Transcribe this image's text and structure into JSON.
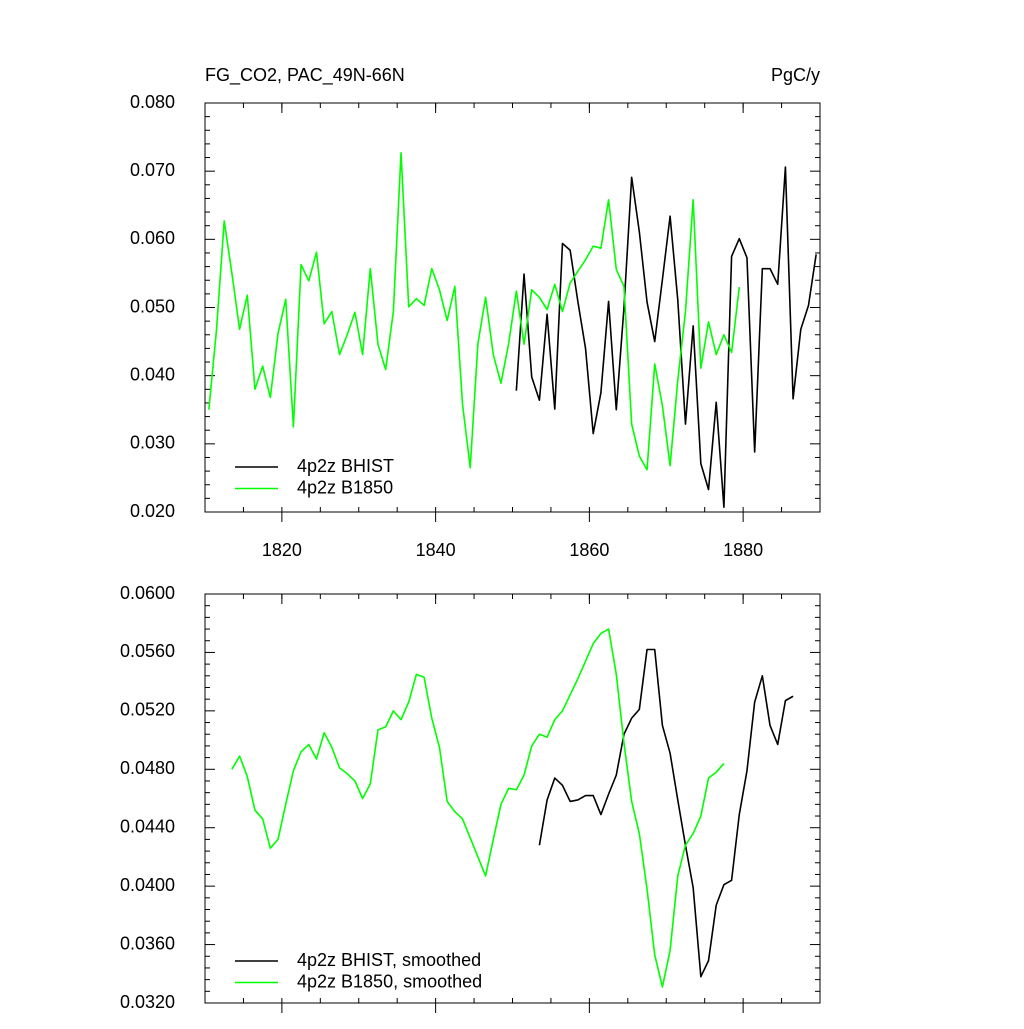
{
  "chart_data": [
    {
      "type": "line",
      "title": "FG_CO2, PAC_49N-66N",
      "units": "PgC/y",
      "xlim": [
        1810,
        1890
      ],
      "xticks": [
        1820,
        1840,
        1860,
        1880
      ],
      "ylim": [
        0.02,
        0.08
      ],
      "yticks": [
        {
          "value": 0.02,
          "label": "0.020"
        },
        {
          "value": 0.03,
          "label": "0.030"
        },
        {
          "value": 0.04,
          "label": "0.040"
        },
        {
          "value": 0.05,
          "label": "0.050"
        },
        {
          "value": 0.06,
          "label": "0.060"
        },
        {
          "value": 0.07,
          "label": "0.070"
        },
        {
          "value": 0.08,
          "label": "0.080"
        }
      ],
      "legend": "lower left",
      "series": [
        {
          "name": "4p2z BHIST",
          "color": "#000000",
          "x": [
            1850.5,
            1851.5,
            1852.5,
            1853.5,
            1854.5,
            1855.5,
            1856.5,
            1857.5,
            1858.5,
            1859.5,
            1860.5,
            1861.5,
            1862.5,
            1863.5,
            1864.5,
            1865.5,
            1866.5,
            1867.5,
            1868.5,
            1869.5,
            1870.5,
            1871.5,
            1872.5,
            1873.5,
            1874.5,
            1875.5,
            1876.5,
            1877.5,
            1878.5,
            1879.5,
            1880.5,
            1881.5,
            1882.5,
            1883.5,
            1884.5,
            1885.5,
            1886.5,
            1887.5,
            1888.5,
            1889.5
          ],
          "values": [
            0.0378,
            0.0549,
            0.0398,
            0.0364,
            0.049,
            0.0351,
            0.0594,
            0.0584,
            0.0509,
            0.044,
            0.0315,
            0.0375,
            0.0509,
            0.035,
            0.05,
            0.0691,
            0.0611,
            0.0508,
            0.045,
            0.0541,
            0.0634,
            0.0511,
            0.0329,
            0.0473,
            0.0271,
            0.0233,
            0.0361,
            0.0207,
            0.0575,
            0.0601,
            0.0573,
            0.0288,
            0.0557,
            0.0557,
            0.0534,
            0.0706,
            0.0366,
            0.0468,
            0.0503,
            0.0578
          ]
        },
        {
          "name": "4p2z B1850",
          "color": "#00ff00",
          "x": [
            1810.5,
            1811.5,
            1812.5,
            1813.5,
            1814.5,
            1815.5,
            1816.5,
            1817.5,
            1818.5,
            1819.5,
            1820.5,
            1821.5,
            1822.5,
            1823.5,
            1824.5,
            1825.5,
            1826.5,
            1827.5,
            1828.5,
            1829.5,
            1830.5,
            1831.5,
            1832.5,
            1833.5,
            1834.5,
            1835.5,
            1836.5,
            1837.5,
            1838.5,
            1839.5,
            1840.5,
            1841.5,
            1842.5,
            1843.5,
            1844.5,
            1845.5,
            1846.5,
            1847.5,
            1848.5,
            1849.5,
            1850.5,
            1851.5,
            1852.5,
            1853.5,
            1854.5,
            1855.5,
            1856.5,
            1857.5,
            1858.5,
            1859.5,
            1860.5,
            1861.5,
            1862.5,
            1863.5,
            1864.5,
            1865.5,
            1866.5,
            1867.5,
            1868.5,
            1869.5,
            1870.5,
            1871.5,
            1872.5,
            1873.5,
            1874.5,
            1875.5,
            1876.5,
            1877.5,
            1878.5,
            1879.5
          ],
          "values": [
            0.035,
            0.0468,
            0.0627,
            0.055,
            0.0468,
            0.0518,
            0.038,
            0.0414,
            0.0368,
            0.0462,
            0.0512,
            0.0325,
            0.0563,
            0.0539,
            0.0581,
            0.0476,
            0.0494,
            0.0431,
            0.046,
            0.0493,
            0.0431,
            0.0557,
            0.0446,
            0.0409,
            0.0494,
            0.0727,
            0.0501,
            0.0513,
            0.0503,
            0.0557,
            0.0526,
            0.0481,
            0.0531,
            0.0358,
            0.0265,
            0.0447,
            0.0515,
            0.0431,
            0.0389,
            0.0447,
            0.0524,
            0.0446,
            0.0526,
            0.0515,
            0.0497,
            0.0534,
            0.0494,
            0.0536,
            0.0553,
            0.057,
            0.059,
            0.0587,
            0.0658,
            0.0556,
            0.0531,
            0.0329,
            0.0282,
            0.0262,
            0.0417,
            0.0356,
            0.0268,
            0.0393,
            0.0494,
            0.0658,
            0.0411,
            0.0479,
            0.0431,
            0.046,
            0.0434,
            0.053
          ]
        }
      ]
    },
    {
      "type": "line",
      "xlim": [
        1810,
        1890
      ],
      "xticks": [
        1820,
        1840,
        1860,
        1880
      ],
      "ylim": [
        0.032,
        0.06
      ],
      "yticks": [
        {
          "value": 0.032,
          "label": "0.0320"
        },
        {
          "value": 0.036,
          "label": "0.0360"
        },
        {
          "value": 0.04,
          "label": "0.0400"
        },
        {
          "value": 0.044,
          "label": "0.0440"
        },
        {
          "value": 0.048,
          "label": "0.0480"
        },
        {
          "value": 0.052,
          "label": "0.0520"
        },
        {
          "value": 0.056,
          "label": "0.0560"
        },
        {
          "value": 0.06,
          "label": "0.0600"
        }
      ],
      "legend": "lower left",
      "series": [
        {
          "name": "4p2z BHIST, smoothed",
          "color": "#000000",
          "x": [
            1853.5,
            1854.5,
            1855.5,
            1856.5,
            1857.5,
            1858.5,
            1859.5,
            1860.5,
            1861.5,
            1862.5,
            1863.5,
            1864.5,
            1865.5,
            1866.5,
            1867.5,
            1868.5,
            1869.5,
            1870.5,
            1871.5,
            1872.5,
            1873.5,
            1874.5,
            1875.5,
            1876.5,
            1877.5,
            1878.5,
            1879.5,
            1880.5,
            1881.5,
            1882.5,
            1883.5,
            1884.5,
            1885.5,
            1886.5
          ],
          "values": [
            0.0428,
            0.0459,
            0.0474,
            0.0469,
            0.0458,
            0.0459,
            0.0462,
            0.0462,
            0.0449,
            0.0463,
            0.0476,
            0.0504,
            0.0515,
            0.0521,
            0.0562,
            0.0562,
            0.051,
            0.0491,
            0.0459,
            0.0428,
            0.0399,
            0.0338,
            0.0349,
            0.0387,
            0.0401,
            0.0404,
            0.0449,
            0.0479,
            0.0526,
            0.0544,
            0.051,
            0.0497,
            0.0527,
            0.053
          ]
        },
        {
          "name": "4p2z B1850, smoothed",
          "color": "#00ff00",
          "x": [
            1813.5,
            1814.5,
            1815.5,
            1816.5,
            1817.5,
            1818.5,
            1819.5,
            1820.5,
            1821.5,
            1822.5,
            1823.5,
            1824.5,
            1825.5,
            1826.5,
            1827.5,
            1828.5,
            1829.5,
            1830.5,
            1831.5,
            1832.5,
            1833.5,
            1834.5,
            1835.5,
            1836.5,
            1837.5,
            1838.5,
            1839.5,
            1840.5,
            1841.5,
            1842.5,
            1843.5,
            1844.5,
            1845.5,
            1846.5,
            1847.5,
            1848.5,
            1849.5,
            1850.5,
            1851.5,
            1852.5,
            1853.5,
            1854.5,
            1855.5,
            1856.5,
            1857.5,
            1858.5,
            1859.5,
            1860.5,
            1861.5,
            1862.5,
            1863.5,
            1864.5,
            1865.5,
            1866.5,
            1867.5,
            1868.5,
            1869.5,
            1870.5,
            1871.5,
            1872.5,
            1873.5,
            1874.5,
            1875.5,
            1876.5,
            1877.5
          ],
          "values": [
            0.048,
            0.0489,
            0.0475,
            0.0452,
            0.0446,
            0.0426,
            0.0432,
            0.0456,
            0.0479,
            0.0492,
            0.0497,
            0.0487,
            0.0505,
            0.0495,
            0.0481,
            0.0477,
            0.0472,
            0.046,
            0.047,
            0.0507,
            0.0509,
            0.052,
            0.0514,
            0.0526,
            0.0545,
            0.0543,
            0.0515,
            0.0495,
            0.0458,
            0.0451,
            0.0446,
            0.0433,
            0.042,
            0.0407,
            0.0432,
            0.0456,
            0.0467,
            0.0466,
            0.0476,
            0.0496,
            0.0504,
            0.0502,
            0.0514,
            0.052,
            0.0531,
            0.0542,
            0.0554,
            0.0566,
            0.0573,
            0.0576,
            0.0545,
            0.0498,
            0.0458,
            0.0436,
            0.0398,
            0.0353,
            0.0331,
            0.0356,
            0.0407,
            0.0428,
            0.0436,
            0.0448,
            0.0474,
            0.0478,
            0.0484
          ]
        }
      ]
    }
  ]
}
